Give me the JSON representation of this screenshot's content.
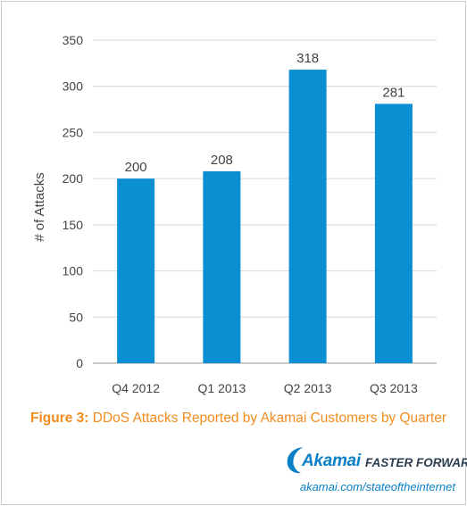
{
  "chart_data": {
    "type": "bar",
    "categories": [
      "Q4 2012",
      "Q1 2013",
      "Q2 2013",
      "Q3 2013"
    ],
    "values": [
      200,
      208,
      318,
      281
    ],
    "title": "",
    "xlabel": "",
    "ylabel": "# of Attacks",
    "ylim": [
      0,
      350
    ],
    "yticks": [
      0,
      50,
      100,
      150,
      200,
      250,
      300,
      350
    ],
    "grid": true,
    "data_labels": true,
    "bar_color": "#0a8fd3"
  },
  "caption": {
    "figure_label": "Figure 3:",
    "text": "DDoS Attacks Reported by Akamai Customers by Quarter",
    "color": "#f28c1e"
  },
  "branding": {
    "logo_text": "Akamai",
    "tagline": "FASTER FORWARD",
    "url": "akamai.com/stateoftheinternet",
    "brand_color": "#0b80c6"
  }
}
